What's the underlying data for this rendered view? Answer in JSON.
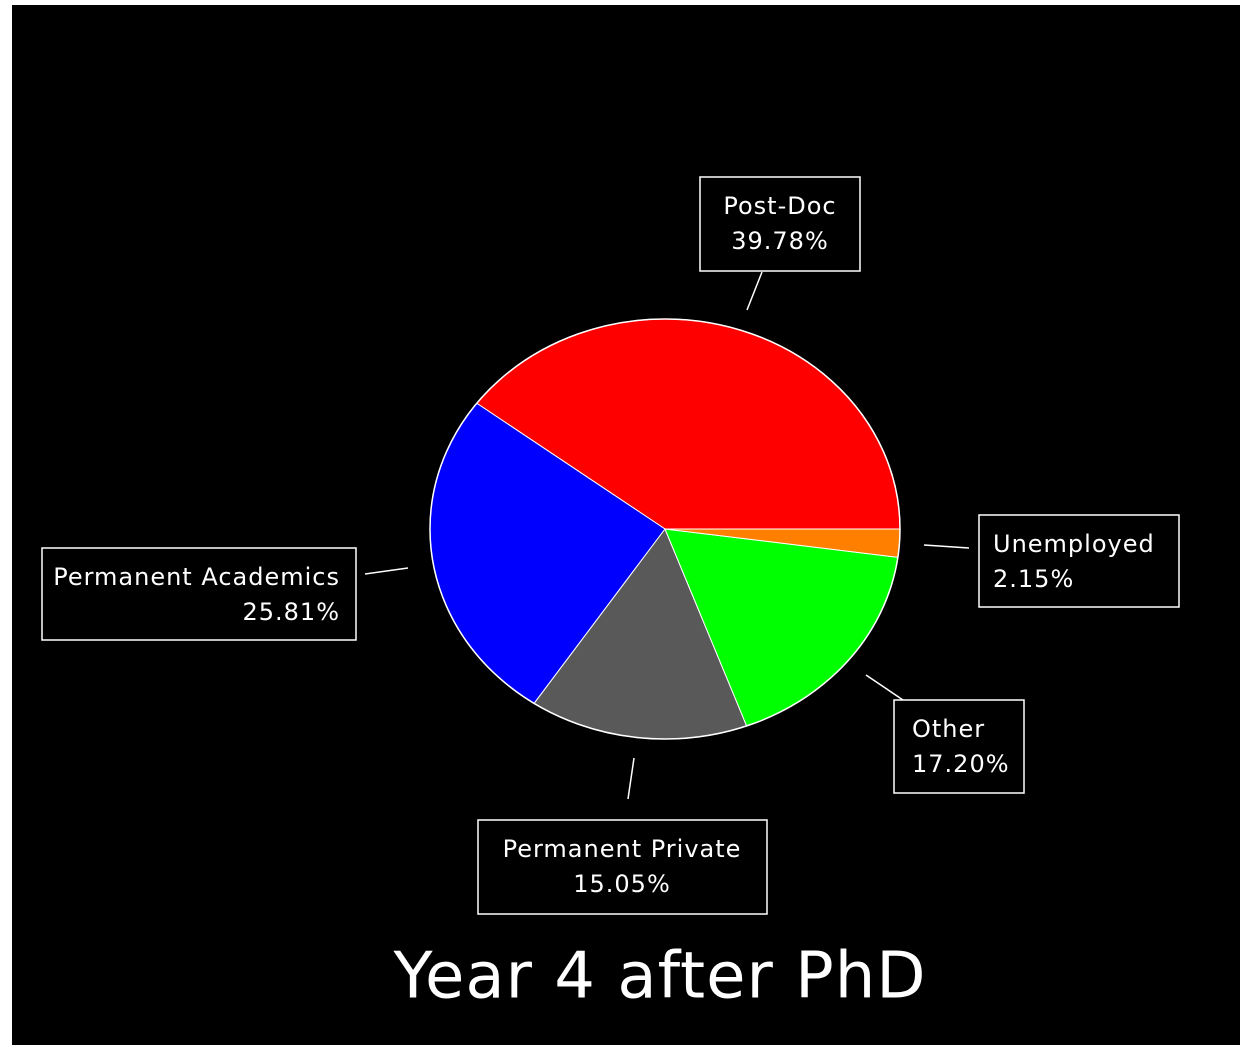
{
  "chart_data": {
    "type": "pie",
    "title": "Year 4 after PhD",
    "categories": [
      "Post-Doc",
      "Permanent Academics",
      "Permanent Private",
      "Other",
      "Unemployed"
    ],
    "values": [
      39.78,
      25.81,
      15.05,
      17.2,
      2.15
    ],
    "value_labels": [
      "39.78%",
      "25.81%",
      "15.05%",
      "17.20%",
      "2.15%"
    ],
    "colors": [
      "#ff0000",
      "#0000ff",
      "#595959",
      "#00ff00",
      "#ff8000"
    ]
  }
}
